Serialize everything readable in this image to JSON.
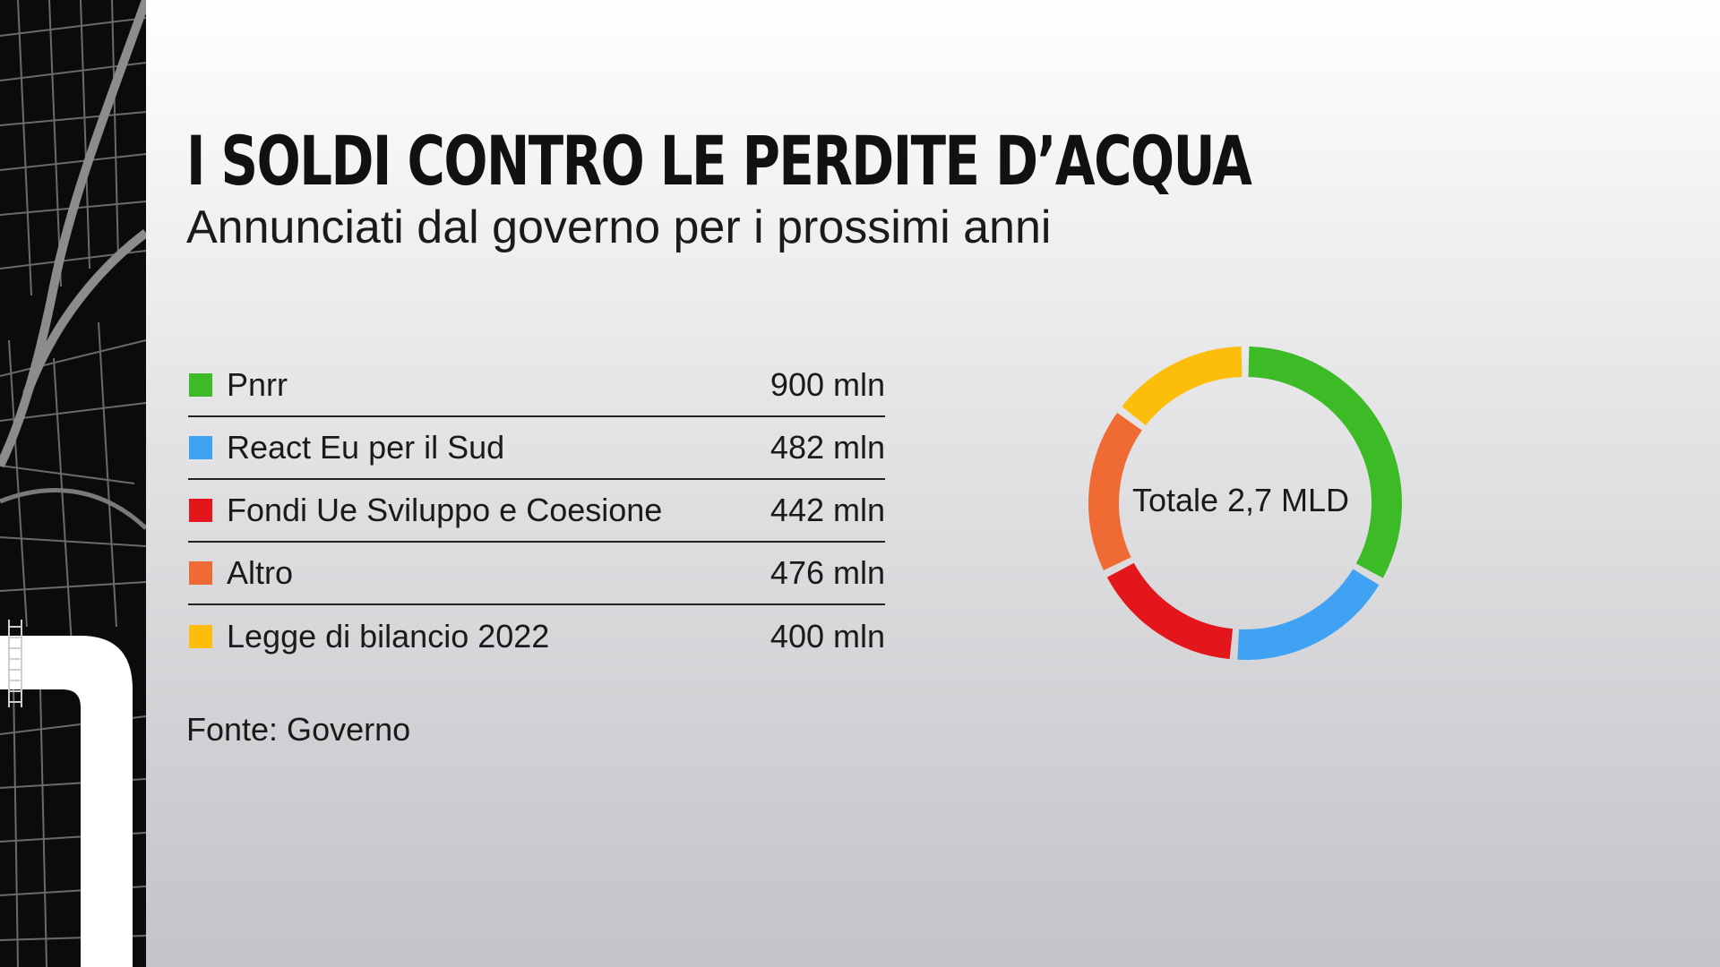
{
  "header": {
    "title": "I SOLDI CONTRO LE PERDITE D’ACQUA",
    "subtitle": "Annunciati dal governo per i prossimi anni"
  },
  "legend": [
    {
      "label": "Pnrr",
      "value_text": "900 mln",
      "color": "#3dbb26"
    },
    {
      "label": "React Eu per il Sud",
      "value_text": "482 mln",
      "color": "#3fa2f2"
    },
    {
      "label": "Fondi Ue Sviluppo e Coesione",
      "value_text": "442 mln",
      "color": "#e3171b"
    },
    {
      "label": "Altro",
      "value_text": "476 mln",
      "color": "#ef6b33"
    },
    {
      "label": "Legge di bilancio 2022",
      "value_text": "400 mln",
      "color": "#fcbe0a"
    }
  ],
  "donut": {
    "center_label": "Totale 2,7 MLD"
  },
  "source": "Fonte: Governo",
  "chart_data": {
    "type": "pie",
    "categories": [
      "Pnrr",
      "React Eu per il Sud",
      "Fondi Ue Sviluppo e Coesione",
      "Altro",
      "Legge di bilancio 2022"
    ],
    "values": [
      900,
      482,
      442,
      476,
      400
    ],
    "unit": "mln",
    "colors": [
      "#3dbb26",
      "#3fa2f2",
      "#e3171b",
      "#ef6b33",
      "#fcbe0a"
    ],
    "title": "I SOLDI CONTRO LE PERDITE D’ACQUA",
    "subtitle": "Annunciati dal governo per i prossimi anni",
    "total_label": "Totale 2,7 MLD"
  }
}
